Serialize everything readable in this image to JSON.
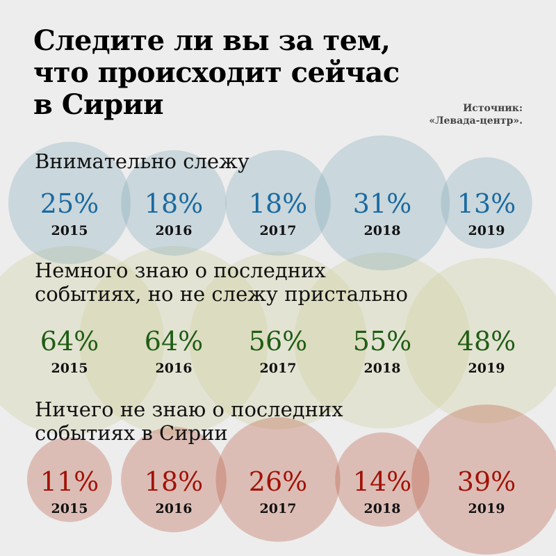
{
  "title": "Следите ли вы за тем,\nчто происходит сейчас\nв Сирии",
  "source": {
    "line1": "Источник:",
    "line2": "«Левада-центр»."
  },
  "chart_data": {
    "type": "table",
    "categories": [
      "2015",
      "2016",
      "2017",
      "2018",
      "2019"
    ],
    "units": "%",
    "series": [
      {
        "name": "Внимательно слежу",
        "values": [
          25,
          18,
          18,
          31,
          13
        ],
        "color": "#1a6aa0"
      },
      {
        "name": "Немного знаю о последних\nсобытиях, но не слежу пристально",
        "values": [
          64,
          64,
          56,
          55,
          48
        ],
        "color": "#1f5d14"
      },
      {
        "name": "Ничего не знаю о последних\nсобытиях в Сирии",
        "values": [
          11,
          18,
          26,
          14,
          39
        ],
        "color": "#a11208"
      }
    ]
  }
}
